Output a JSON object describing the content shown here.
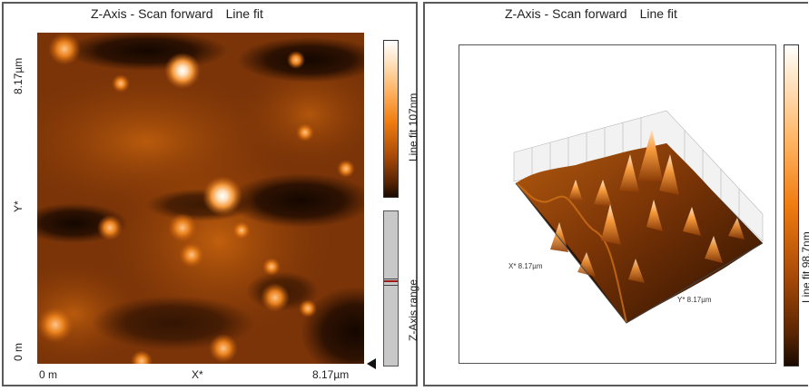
{
  "left_panel": {
    "title": "Z-Axis - Scan forward",
    "title_mode": "Line fit",
    "y_axis": {
      "label": "Y*",
      "min_label": "0 m",
      "max_label": "8.17µm"
    },
    "x_axis": {
      "label": "X*",
      "min_label": "0 m",
      "max_label": "8.17µm"
    },
    "colorbar_label": "Line fit 107nm",
    "range_slider_label": "Z-Axis range",
    "colors": {
      "dark": "#1a0a00",
      "mid": "#c05a0a",
      "bright": "#ffb463",
      "peak": "#ffffff",
      "range_marker": "#9a1a1a"
    },
    "icons": {
      "range_pointer": "triangle-left-icon"
    }
  },
  "right_panel": {
    "title": "Z-Axis - Scan forward",
    "title_mode": "Line fit",
    "x_axis_label": "X* 8.17µm",
    "y_axis_label": "Y* 8.17µm",
    "colorbar_label": "Line fit 98.7nm"
  }
}
